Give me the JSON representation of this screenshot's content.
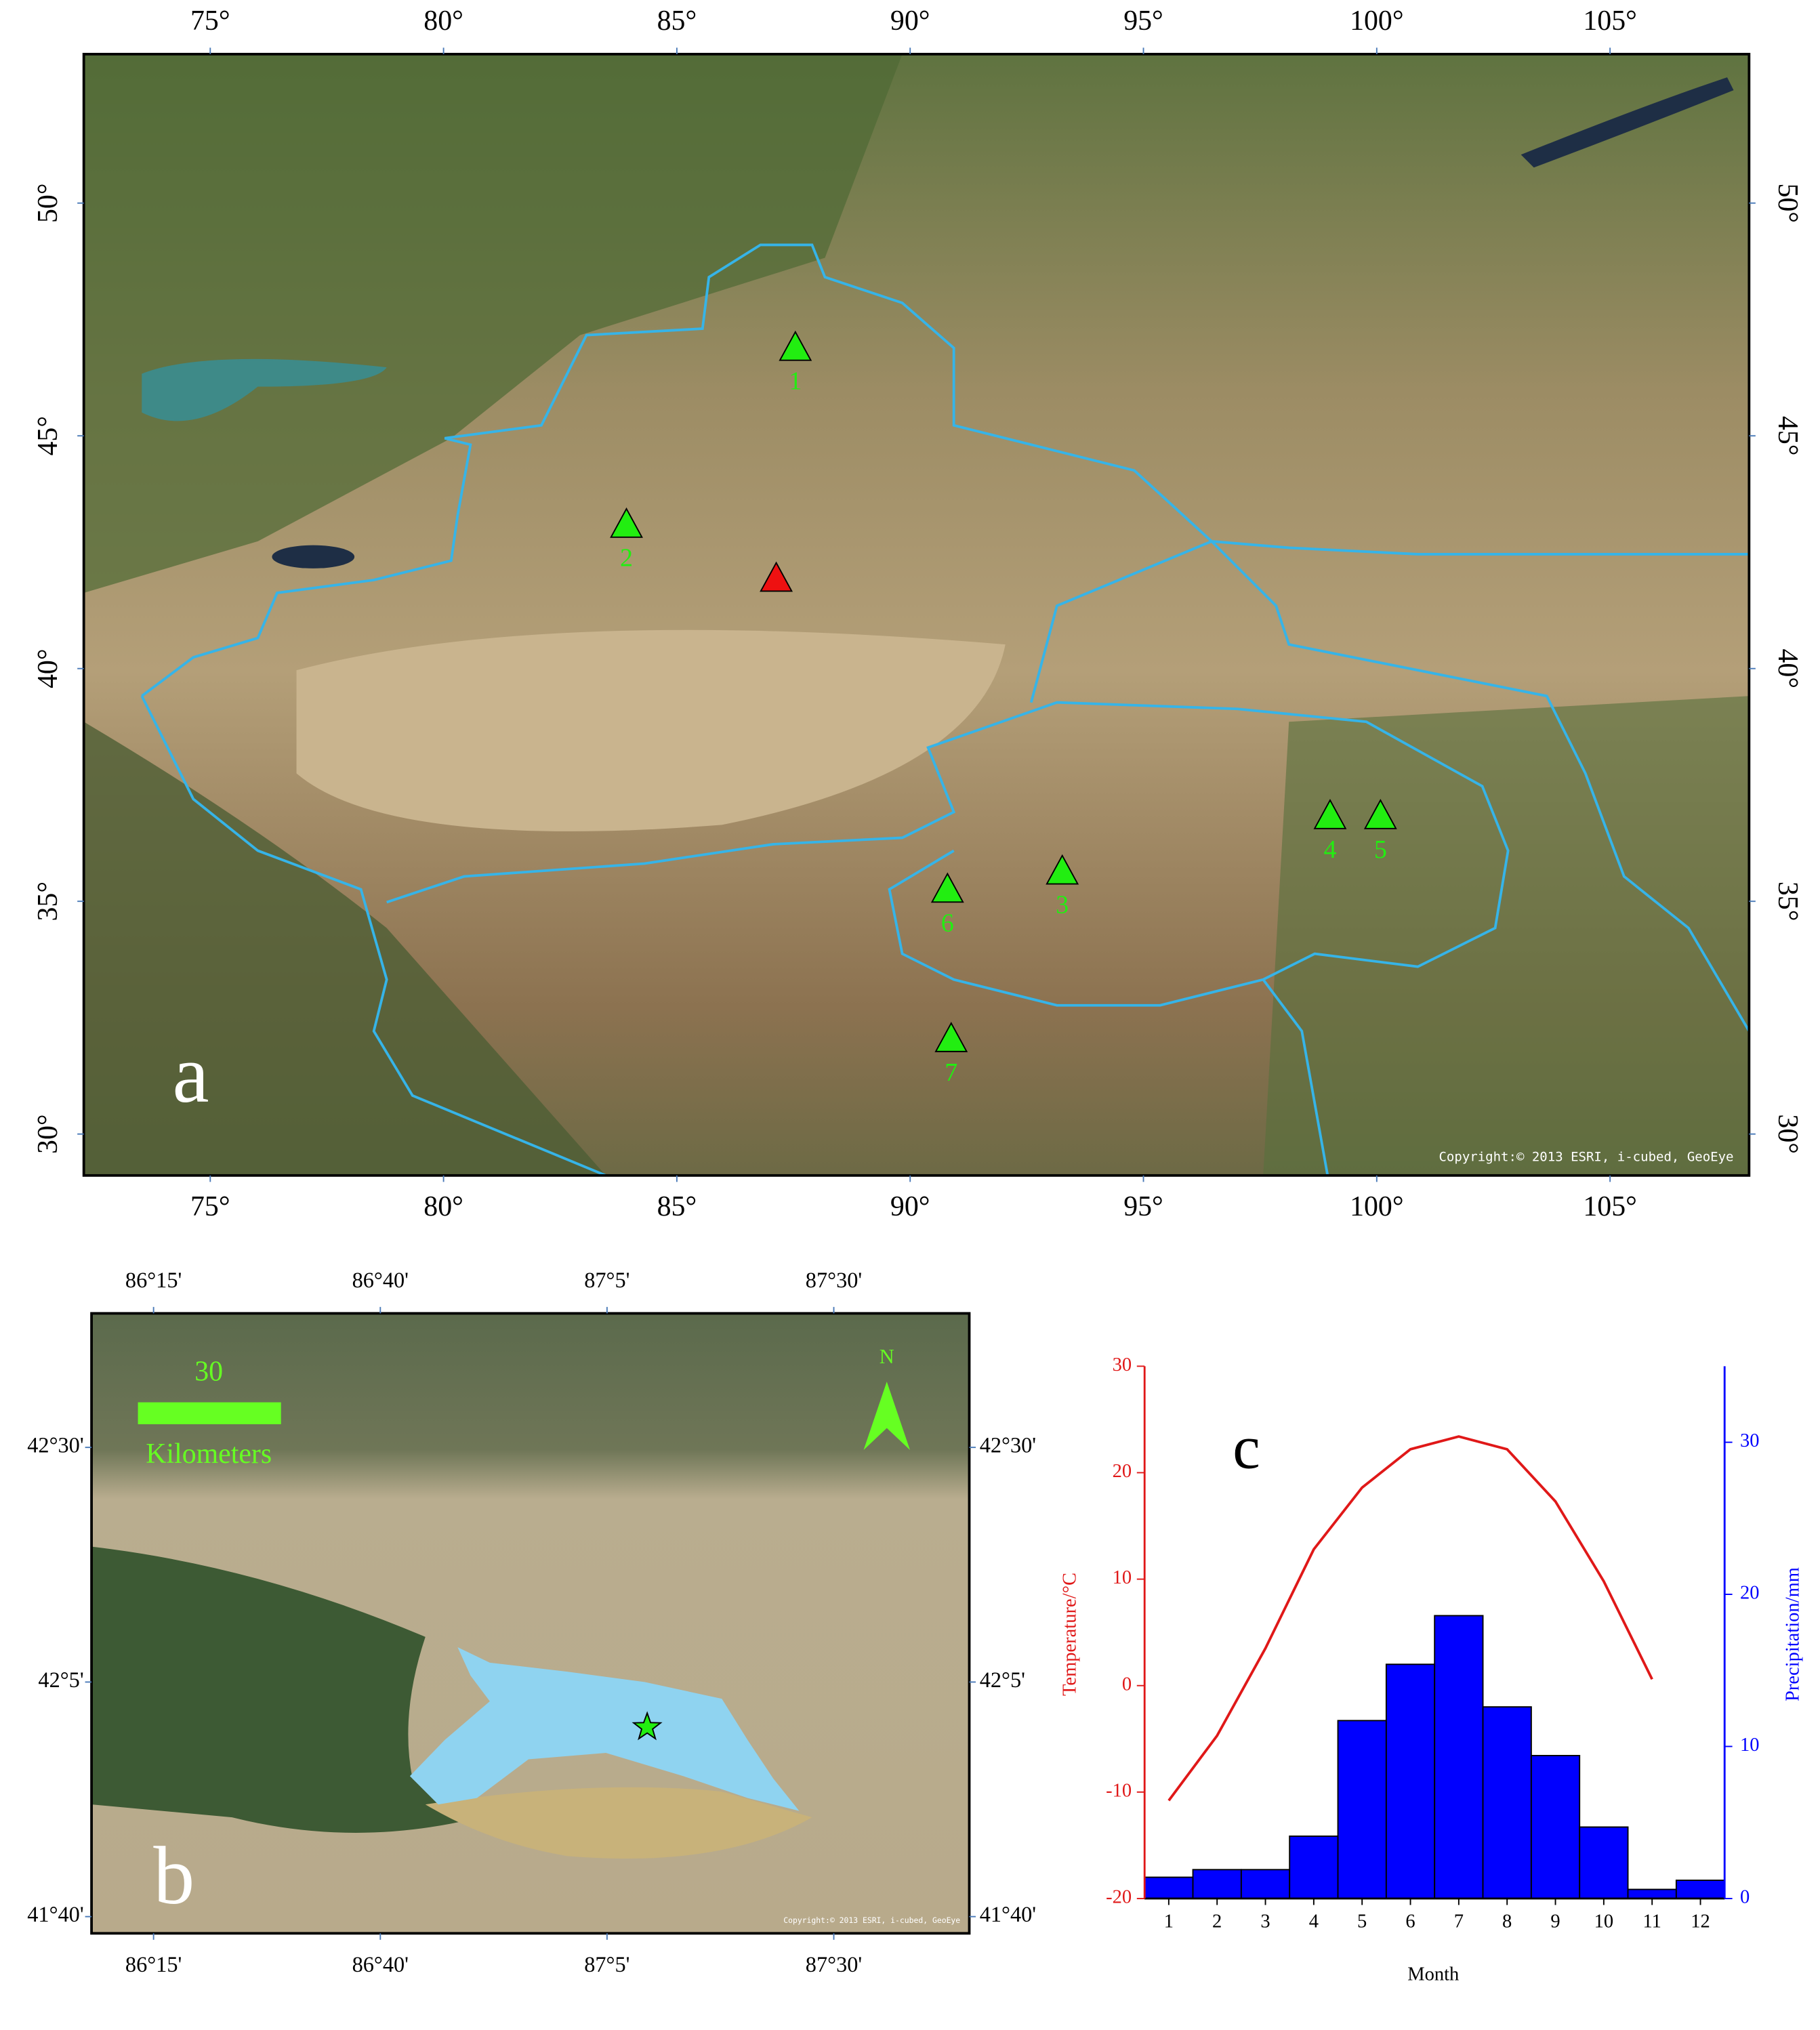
{
  "map_a": {
    "label": "a",
    "xlim": [
      72.29,
      107.98
    ],
    "ylim": [
      29.11,
      53.2
    ],
    "xticks": [
      {
        "value": 75,
        "label": "75°"
      },
      {
        "value": 80,
        "label": "80°"
      },
      {
        "value": 85,
        "label": "85°"
      },
      {
        "value": 90,
        "label": "90°"
      },
      {
        "value": 95,
        "label": "95°"
      },
      {
        "value": 100,
        "label": "100°"
      },
      {
        "value": 105,
        "label": "105°"
      }
    ],
    "yticks": [
      {
        "value": 30,
        "label": "30°"
      },
      {
        "value": 35,
        "label": "35°"
      },
      {
        "value": 40,
        "label": "40°"
      },
      {
        "value": 45,
        "label": "45°"
      },
      {
        "value": 50,
        "label": "50°"
      }
    ],
    "sites": [
      {
        "label": "1",
        "lon": 87.54,
        "lat": 46.9,
        "color": "#22ee11"
      },
      {
        "label": "2",
        "lon": 83.92,
        "lat": 43.1,
        "color": "#22ee11"
      },
      {
        "lon": 87.13,
        "lat": 41.94,
        "color": "#ee1111"
      },
      {
        "label": "3",
        "lon": 93.26,
        "lat": 35.65,
        "color": "#22ee11"
      },
      {
        "label": "4",
        "lon": 99.0,
        "lat": 36.84,
        "color": "#22ee11"
      },
      {
        "label": "5",
        "lon": 100.08,
        "lat": 36.84,
        "color": "#22ee11"
      },
      {
        "label": "6",
        "lon": 90.8,
        "lat": 35.26,
        "color": "#22ee11"
      },
      {
        "label": "7",
        "lon": 90.88,
        "lat": 32.05,
        "color": "#22ee11"
      }
    ],
    "copyright": "Copyright:© 2013 ESRI, i-cubed, GeoEye"
  },
  "map_b": {
    "label": "b",
    "xlim": [
      86.136,
      87.749
    ],
    "ylim": [
      41.637,
      42.738
    ],
    "xticks": [
      {
        "value": 86.25,
        "label": "86°15'"
      },
      {
        "value": 86.6667,
        "label": "86°40'"
      },
      {
        "value": 87.0833,
        "label": "87°5'"
      },
      {
        "value": 87.5,
        "label": "87°30'"
      }
    ],
    "yticks": [
      {
        "value": 41.6667,
        "label": "41°40'"
      },
      {
        "value": 42.0833,
        "label": "42°5'"
      },
      {
        "value": 42.5,
        "label": "42°30'"
      }
    ],
    "site": {
      "lon": 87.157,
      "lat": 42.003,
      "color": "#22ee11"
    },
    "scale_bar": {
      "length": 30,
      "unit": "Kilometers"
    },
    "north": "N",
    "copyright": "Copyright:© 2013 ESRI, i-cubed, GeoEye"
  },
  "chart_data": {
    "type": "combo",
    "label": "c",
    "x": [
      1,
      2,
      3,
      4,
      5,
      6,
      7,
      8,
      9,
      10,
      11,
      12
    ],
    "xlim": [
      0.5,
      12.5
    ],
    "xticks": [
      1,
      2,
      3,
      4,
      5,
      6,
      7,
      8,
      9,
      10,
      11,
      12
    ],
    "xlabel": "Month",
    "ylabel": "Temperature/°C",
    "ylim": [
      -20,
      30
    ],
    "yticks": [
      -20,
      -10,
      0,
      10,
      20,
      30
    ],
    "y2label": "Precipitation/mm",
    "y2lim": [
      0,
      35
    ],
    "y2ticks": [
      0,
      10,
      20,
      30
    ],
    "series": [
      {
        "type": "line",
        "color": "#e01818",
        "values": [
          -10.8,
          -4.7,
          3.5,
          12.8,
          18.6,
          22.2,
          23.4,
          22.2,
          17.3,
          9.8,
          0.6,
          null
        ]
      },
      {
        "type": "bar",
        "axis": "y2",
        "color": "#0000ff",
        "values": [
          1.4,
          1.9,
          1.9,
          4.1,
          11.7,
          15.4,
          18.6,
          12.6,
          9.4,
          4.7,
          0.6,
          1.2
        ]
      }
    ]
  }
}
